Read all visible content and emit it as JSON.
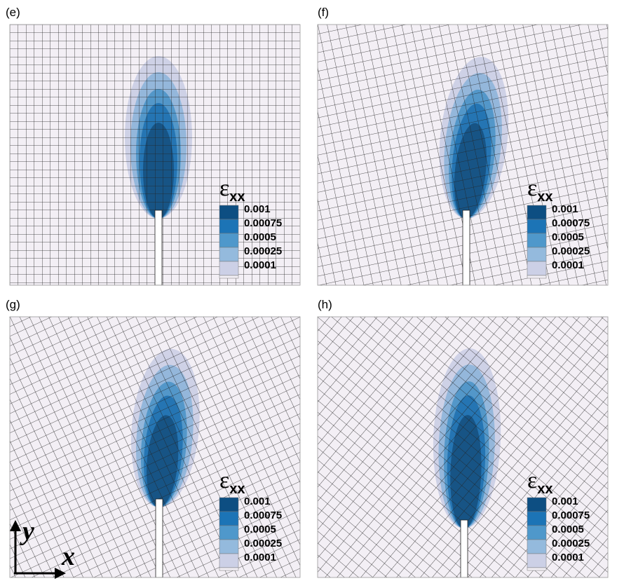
{
  "panels": [
    {
      "label": "(e)",
      "legend": {
        "symbol": "ε",
        "subscript": "xx",
        "levels": [
          0.001,
          0.00075,
          0.0005,
          0.00025,
          0.0001
        ]
      }
    },
    {
      "label": "(f)",
      "legend": {
        "symbol": "ε",
        "subscript": "xx",
        "levels": [
          0.001,
          0.00075,
          0.0005,
          0.00025,
          0.0001
        ]
      }
    },
    {
      "label": "(g)",
      "legend": {
        "symbol": "ε",
        "subscript": "xx",
        "levels": [
          0.001,
          0.00075,
          0.0005,
          0.00025,
          0.0001
        ]
      }
    },
    {
      "label": "(h)",
      "legend": {
        "symbol": "ε",
        "subscript": "xx",
        "levels": [
          0.001,
          0.00075,
          0.0005,
          0.00025,
          0.0001
        ]
      }
    }
  ],
  "axes": {
    "y": "y",
    "x": "x"
  }
}
